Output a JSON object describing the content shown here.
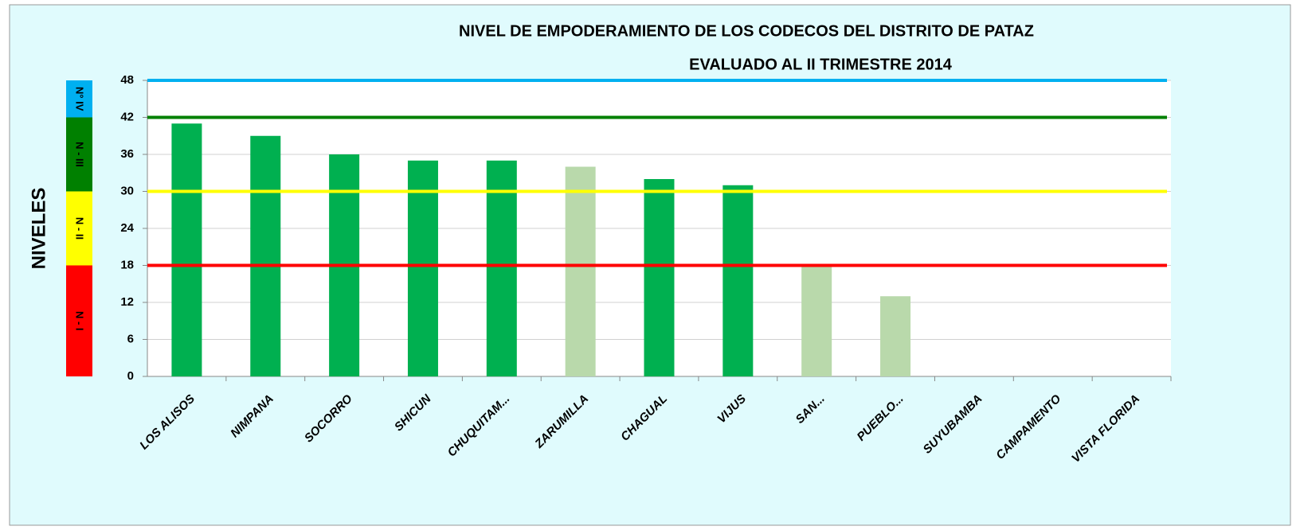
{
  "chart_data": {
    "type": "bar",
    "title": "NIVEL DE EMPODERAMIENTO DE LOS CODECOS DEL DISTRITO DE PATAZ",
    "subtitle": "EVALUADO AL    II TRIMESTRE 2014",
    "y_label": "NIVELES",
    "categories": [
      "LOS ALISOS",
      "NIMPANA",
      "SOCORRO",
      "SHICUN",
      "CHUQUITAM...",
      "ZARUMILLA",
      "CHAGUAL",
      "VIJUS",
      "SAN...",
      "PUEBLO...",
      "SUYUBAMBA",
      "CAMPAMENTO",
      "VISTA FLORIDA"
    ],
    "values": [
      41,
      39,
      36,
      35,
      35,
      34,
      32,
      31,
      18,
      13,
      null,
      null,
      null
    ],
    "colors": [
      "#00b050",
      "#00b050",
      "#00b050",
      "#00b050",
      "#00b050",
      "#b9d9ab",
      "#00b050",
      "#00b050",
      "#b9d9ab",
      "#b9d9ab",
      "#00b050",
      "#00b050",
      "#00b050"
    ],
    "ylim": [
      0,
      48
    ],
    "yticks": [
      0,
      6,
      12,
      18,
      24,
      30,
      36,
      42,
      48
    ],
    "grid": true,
    "levels": [
      {
        "label": "N - I",
        "from": 0,
        "to": 18,
        "color": "#ff0000"
      },
      {
        "label": "N - II",
        "from": 18,
        "to": 30,
        "color": "#ffff00"
      },
      {
        "label": "N - III",
        "from": 30,
        "to": 42,
        "color": "#008000"
      },
      {
        "label": "N° IV",
        "from": 42,
        "to": 48,
        "color": "#00b0f0"
      }
    ],
    "reference_lines": [
      {
        "value": 18,
        "color": "#ff0000"
      },
      {
        "value": 30,
        "color": "#ffff00"
      },
      {
        "value": 42,
        "color": "#008000"
      },
      {
        "value": 48,
        "color": "#00b0f0"
      }
    ]
  }
}
